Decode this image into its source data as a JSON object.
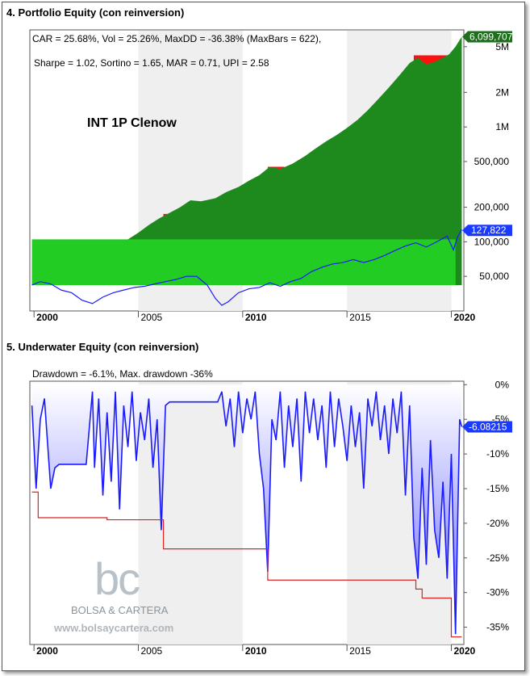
{
  "chart_data": [
    {
      "type": "area",
      "title": "4. Portfolio Equity (con reinversion)",
      "stats_line1": "CAR = 25.68%, Vol = 25.26%, MaxDD = -36.38% (MaxBars = 622),",
      "stats_line2": "Sharpe = 1.02, Sortino = 1.65, MAR = 0.71, UPI = 2.58",
      "annotation": "INT 1P Clenow",
      "y_scale": "log",
      "ylim": [
        25000,
        7000000
      ],
      "xlim": [
        1999.8,
        2020.6
      ],
      "y_ticks": [
        50000,
        100000,
        200000,
        500000,
        1000000,
        2000000,
        5000000
      ],
      "y_tick_labels": [
        "50,000",
        "100,000",
        "200,000",
        "500,000",
        "1M",
        "2M",
        "5M"
      ],
      "x_ticks": [
        2000,
        2005,
        2010,
        2015,
        2020
      ],
      "x_tick_labels": [
        "2000",
        "2005",
        "2010",
        "2015",
        "2020"
      ],
      "last_value_labels": [
        "6,099,707",
        "127,822"
      ],
      "colors": {
        "equity": "#1e8a1e",
        "base": "#22cc22",
        "drawdown": "#ff1010",
        "benchmark": "#1a1aff"
      },
      "series": [
        {
          "kind": "equity",
          "x": [
            1999.9,
            2000.2,
            2000.6,
            2001.0,
            2001.5,
            2002.2,
            2002.8,
            2003.0,
            2003.5,
            2004.0,
            2004.5,
            2005.0,
            2005.5,
            2006.0,
            2006.4,
            2007.0,
            2007.5,
            2008.0,
            2008.7,
            2009.2,
            2009.8,
            2010.3,
            2010.8,
            2011.3,
            2011.8,
            2012.4,
            2013.0,
            2013.5,
            2014.0,
            2014.5,
            2015.0,
            2015.5,
            2016.0,
            2016.5,
            2017.0,
            2017.5,
            2018.0,
            2018.4,
            2018.8,
            2019.2,
            2019.6,
            2019.9,
            2020.2,
            2020.5
          ],
          "values": [
            42000,
            55000,
            62000,
            58000,
            60000,
            62000,
            68000,
            75000,
            88000,
            95000,
            105000,
            120000,
            140000,
            160000,
            175000,
            200000,
            230000,
            225000,
            240000,
            270000,
            300000,
            340000,
            380000,
            450000,
            430000,
            480000,
            560000,
            650000,
            750000,
            850000,
            980000,
            1150000,
            1400000,
            1750000,
            2200000,
            2800000,
            3600000,
            4000000,
            3500000,
            3700000,
            4000000,
            4300000,
            5000000,
            6099707
          ]
        },
        {
          "kind": "drawdown",
          "x": [
            2000.2,
            2002.8,
            2003.5,
            2004.0,
            2004.6,
            2005.0,
            2006.2,
            2006.8,
            2011.2,
            2012.0,
            2018.2,
            2019.8
          ],
          "values": [
            62000,
            62000,
            88000,
            88000,
            105000,
            105000,
            175000,
            175000,
            450000,
            450000,
            4200000,
            4200000
          ]
        },
        {
          "kind": "benchmark",
          "x": [
            1999.9,
            2000.3,
            2000.8,
            2001.3,
            2001.8,
            2002.3,
            2002.8,
            2003.3,
            2003.8,
            2004.3,
            2004.8,
            2005.3,
            2005.8,
            2006.3,
            2006.8,
            2007.3,
            2007.8,
            2008.3,
            2008.7,
            2009.0,
            2009.3,
            2009.8,
            2010.3,
            2010.8,
            2011.3,
            2011.8,
            2012.3,
            2012.8,
            2013.3,
            2013.8,
            2014.3,
            2014.8,
            2015.3,
            2015.8,
            2016.3,
            2016.8,
            2017.3,
            2017.8,
            2018.3,
            2018.8,
            2019.3,
            2019.8,
            2020.1,
            2020.3,
            2020.5
          ],
          "values": [
            42000,
            45000,
            43000,
            38000,
            36000,
            31000,
            29000,
            33000,
            36000,
            38000,
            40000,
            41000,
            43000,
            45000,
            47000,
            50000,
            50000,
            42000,
            32000,
            28000,
            30000,
            36000,
            39000,
            40000,
            44000,
            41000,
            45000,
            48000,
            55000,
            60000,
            64000,
            66000,
            70000,
            66000,
            70000,
            76000,
            84000,
            92000,
            98000,
            90000,
            100000,
            112000,
            85000,
            110000,
            127822
          ]
        }
      ]
    },
    {
      "type": "area",
      "title": "5. Underwater Equity (con reinversion)",
      "stats_line1": "Drawdown = -6.1%, Max. drawdown -36%",
      "ylim": [
        -37.5,
        0.5
      ],
      "xlim": [
        1999.8,
        2020.6
      ],
      "y_ticks": [
        0,
        -5,
        -10,
        -15,
        -20,
        -25,
        -30,
        -35
      ],
      "y_tick_labels": [
        "0%",
        "-5%",
        "-10%",
        "-15%",
        "-20%",
        "-25%",
        "-30%",
        "-35%"
      ],
      "x_ticks": [
        2000,
        2005,
        2010,
        2015,
        2020
      ],
      "x_tick_labels": [
        "2000",
        "2005",
        "2010",
        "2015",
        "2020"
      ],
      "last_value_label": "-6.08215",
      "colors": {
        "drawdown": "#1a1aff",
        "max_drawdown": "#dd2222",
        "fill_top": "#ffffff",
        "fill_bottom": "#6a6aff"
      },
      "series": [
        {
          "kind": "drawdown",
          "x": [
            1999.9,
            2000.1,
            2000.3,
            2000.5,
            2000.8,
            2001.0,
            2001.2,
            2001.5,
            2002.5,
            2002.8,
            2002.9,
            2003.1,
            2003.3,
            2003.5,
            2003.7,
            2003.9,
            2004.1,
            2004.3,
            2004.5,
            2004.7,
            2004.9,
            2005.1,
            2005.3,
            2005.5,
            2005.7,
            2005.9,
            2006.1,
            2006.3,
            2006.5,
            2008.8,
            2009.0,
            2009.2,
            2009.4,
            2009.6,
            2009.8,
            2010.0,
            2010.2,
            2010.4,
            2010.6,
            2010.8,
            2011.0,
            2011.2,
            2011.4,
            2011.6,
            2011.8,
            2012.0,
            2012.2,
            2012.4,
            2012.6,
            2012.8,
            2013.0,
            2013.2,
            2013.4,
            2013.6,
            2013.8,
            2014.0,
            2014.2,
            2014.4,
            2014.6,
            2014.8,
            2015.0,
            2015.2,
            2015.4,
            2015.6,
            2015.8,
            2016.0,
            2016.2,
            2016.4,
            2016.6,
            2016.8,
            2017.0,
            2017.2,
            2017.4,
            2017.6,
            2017.8,
            2018.0,
            2018.2,
            2018.4,
            2018.6,
            2018.8,
            2019.0,
            2019.2,
            2019.4,
            2019.6,
            2019.8,
            2020.0,
            2020.2,
            2020.4,
            2020.5
          ],
          "values": [
            -3,
            -15,
            -5,
            -2,
            -15,
            -12,
            -11.5,
            -11.5,
            -11.5,
            -1,
            -12,
            -2,
            -16,
            -4,
            -14,
            -1,
            -18,
            -3,
            -9,
            -1,
            -11,
            -4,
            -8,
            -2,
            -12,
            -5,
            -21,
            -3,
            -2.5,
            -2.5,
            -1,
            -6,
            -2,
            -9,
            -1,
            -7,
            -2,
            -5,
            -1,
            -10,
            -15,
            -27,
            -5,
            -8,
            -1,
            -12,
            -3,
            -9,
            -2,
            -14,
            -1,
            -7,
            -2,
            -8,
            -3,
            -12,
            -1,
            -9,
            -2,
            -6,
            -11,
            -3,
            -9,
            -4,
            -15,
            -2,
            -6,
            -1,
            -8,
            -3,
            -10,
            -2,
            -7,
            -1,
            -16,
            -3,
            -22,
            -28,
            -12,
            -26,
            -8,
            -21,
            -25,
            -14,
            -28,
            -10,
            -36,
            -5,
            -6.08
          ]
        },
        {
          "kind": "max_drawdown",
          "x": [
            1999.9,
            2000.2,
            2000.2,
            2003.5,
            2003.5,
            2006.2,
            2006.2,
            2011.2,
            2011.2,
            2018.3,
            2018.3,
            2018.6,
            2018.6,
            2020.0,
            2020.0,
            2020.5
          ],
          "values": [
            -15.5,
            -15.5,
            -19.2,
            -19.2,
            -19.5,
            -19.5,
            -23.7,
            -23.7,
            -28.2,
            -28.2,
            -29.5,
            -29.5,
            -30.8,
            -30.8,
            -36.4,
            -36.4
          ]
        }
      ]
    }
  ],
  "watermark": {
    "site": "www.bolsaycartera.com"
  }
}
